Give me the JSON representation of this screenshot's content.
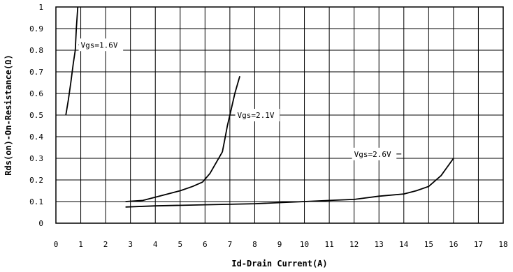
{
  "chart_data": {
    "type": "line",
    "title": "",
    "xlabel": "Id-Drain Current(A)",
    "ylabel": "Rds(on)-On-Resistance(Ω)",
    "xlim": [
      0,
      18
    ],
    "ylim": [
      0,
      1
    ],
    "x_ticks": [
      "0",
      "1",
      "2",
      "3",
      "4",
      "5",
      "6",
      "7",
      "8",
      "9",
      "10",
      "11",
      "12",
      "13",
      "14",
      "15",
      "16",
      "17",
      "18"
    ],
    "y_ticks": [
      "0",
      "0.1",
      "0.2",
      "0.3",
      "0.4",
      "0.5",
      "0.6",
      "0.7",
      "0.8",
      "0.9",
      "1"
    ],
    "grid": true,
    "series": [
      {
        "name": "",
        "points": [
          [
            0.4,
            0.5
          ],
          [
            0.5,
            0.57
          ],
          [
            0.6,
            0.65
          ],
          [
            0.7,
            0.74
          ],
          [
            0.78,
            0.8
          ],
          [
            0.82,
            0.9
          ],
          [
            0.88,
            1.0
          ]
        ]
      },
      {
        "name": "",
        "points": [
          [
            2.8,
            0.1
          ],
          [
            3.5,
            0.105
          ],
          [
            4.0,
            0.12
          ],
          [
            4.5,
            0.135
          ],
          [
            5.0,
            0.15
          ],
          [
            5.5,
            0.17
          ],
          [
            5.9,
            0.19
          ],
          [
            6.2,
            0.23
          ],
          [
            6.5,
            0.29
          ],
          [
            6.7,
            0.33
          ],
          [
            6.8,
            0.39
          ],
          [
            6.9,
            0.45
          ],
          [
            7.0,
            0.5
          ],
          [
            7.2,
            0.6
          ],
          [
            7.4,
            0.68
          ]
        ]
      },
      {
        "name": "",
        "points": [
          [
            2.8,
            0.075
          ],
          [
            4,
            0.08
          ],
          [
            6,
            0.085
          ],
          [
            8,
            0.09
          ],
          [
            10,
            0.1
          ],
          [
            11,
            0.105
          ],
          [
            12,
            0.11
          ],
          [
            13,
            0.125
          ],
          [
            14,
            0.135
          ],
          [
            14.5,
            0.15
          ],
          [
            15,
            0.17
          ],
          [
            15.5,
            0.22
          ],
          [
            16,
            0.3
          ]
        ]
      }
    ],
    "annotations": [
      {
        "text": "Vgs=1.6V",
        "x": 0.9,
        "y": 0.825,
        "label_x": 1.0
      },
      {
        "text": "Vgs=2.1V",
        "x": 7.0,
        "y": 0.5,
        "label_x": 7.3
      },
      {
        "text": "Vgs=2.6V",
        "x": 13.9,
        "y": 0.32,
        "label_x": 12.0
      }
    ]
  }
}
